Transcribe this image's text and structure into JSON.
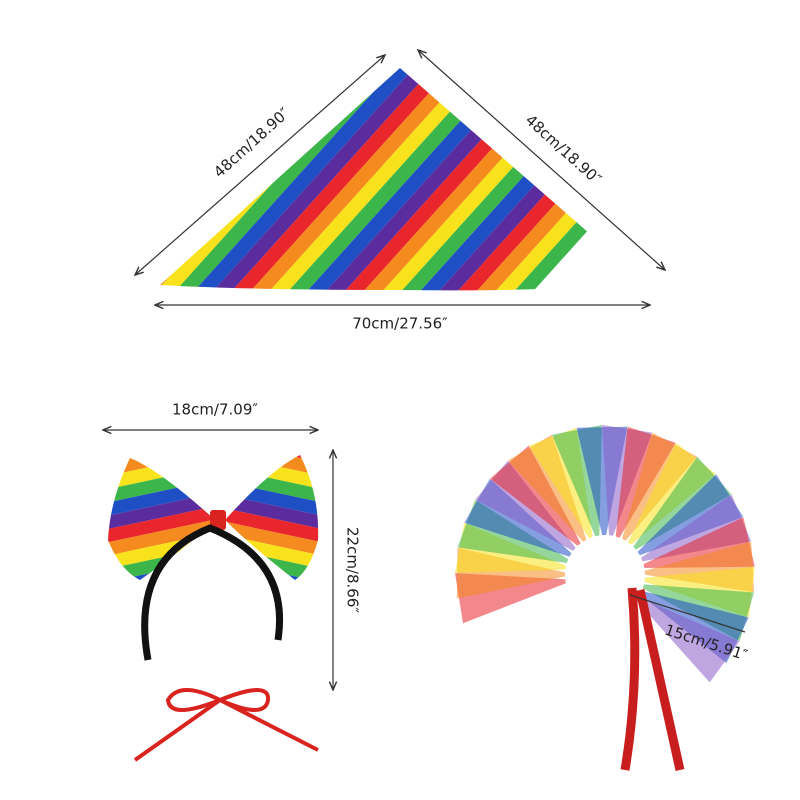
{
  "labels": {
    "triangle_left": "48cm/18.90″",
    "triangle_right": "48cm/18.90″",
    "triangle_bottom": "70cm/27.56″",
    "bow_width": "18cm/7.09″",
    "bow_height": "22cm/8.66″",
    "tutu_length": "15cm/5.91″"
  }
}
